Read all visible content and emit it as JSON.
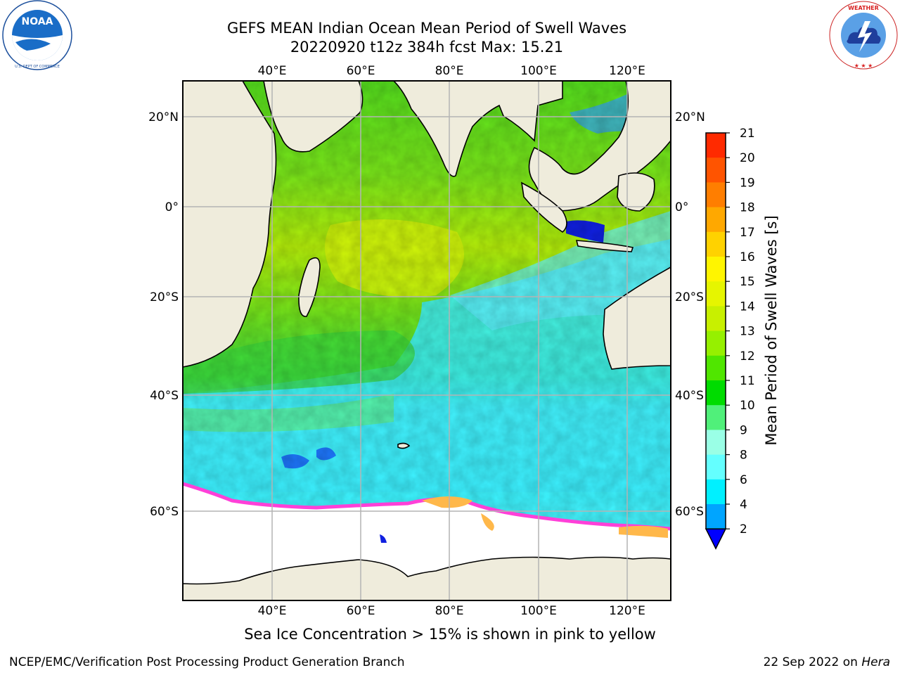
{
  "header": {
    "title_line1": "GEFS MEAN Indian Ocean Mean Period of Swell Waves",
    "title_line2": "20220920 t12z 384h fcst   Max: 15.21"
  },
  "logos": {
    "left": {
      "name": "NOARA-logo",
      "text": "NOAA",
      "ring_text": "NATIONAL OCEANIC AND ATMOSPHERIC ADMINISTRATION · U.S. DEPARTMENT OF COMMERCE"
    },
    "right": {
      "name": "nws-logo",
      "ring_text": "NATIONAL WEATHER SERVICE"
    }
  },
  "map": {
    "lon_ticks_top": [
      "40°E",
      "60°E",
      "80°E",
      "100°E",
      "120°E"
    ],
    "lon_ticks_bottom": [
      "40°E",
      "60°E",
      "80°E",
      "100°E",
      "120°E"
    ],
    "lat_ticks_left": [
      "20°N",
      "0°",
      "20°S",
      "40°S",
      "60°S"
    ],
    "lat_ticks_right": [
      "20°N",
      "0°",
      "20°S",
      "40°S",
      "60°S"
    ],
    "land_color": "#efecdc",
    "ice_color": "#ffffff"
  },
  "colorbar": {
    "title": "Mean Period of Swell Waves [s]",
    "labels": [
      "21",
      "20",
      "19",
      "18",
      "17",
      "16",
      "15",
      "14",
      "13",
      "12",
      "11",
      "10",
      "9",
      "8",
      "6",
      "4",
      "2"
    ],
    "colors": [
      "#ff0000",
      "#ff2a00",
      "#ff5400",
      "#ff7e00",
      "#ffa800",
      "#ffd200",
      "#fff500",
      "#e6f500",
      "#c8f000",
      "#96f000",
      "#50e600",
      "#00dc00",
      "#50f07a",
      "#9affe6",
      "#64ffff",
      "#00f0ff",
      "#00a5ff",
      "#0066ff"
    ],
    "under_color": "#0000ff"
  },
  "footer": {
    "caption": "Sea Ice Concentration > 15% is shown in pink to yellow",
    "credit_left": "NCEP/EMC/Verification Post Processing Product Generation Branch",
    "credit_right_date": "22 Sep 2022 on",
    "credit_right_host": "Hera"
  }
}
